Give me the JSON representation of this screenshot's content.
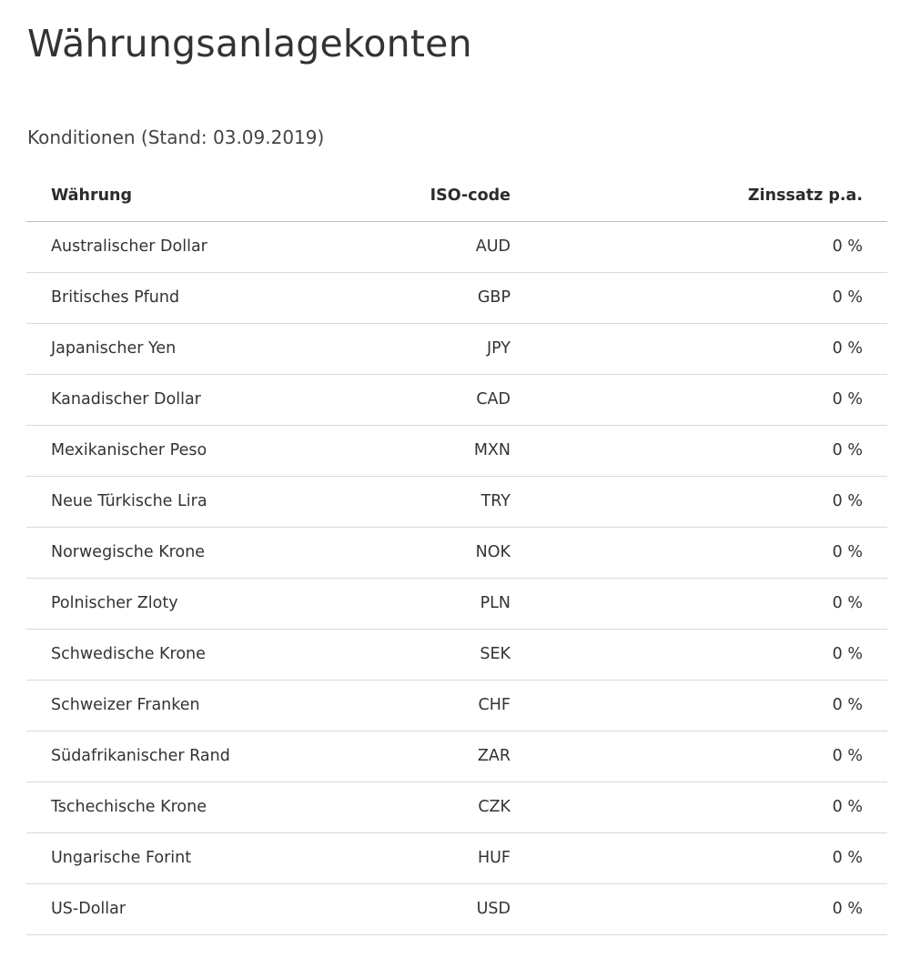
{
  "page": {
    "title": "Währungsanlagekonten",
    "subtitle": "Konditionen (Stand: 03.09.2019)"
  },
  "table": {
    "headers": {
      "currency": "Währung",
      "iso": "ISO-code",
      "rate": "Zinssatz p.a."
    },
    "rows": [
      {
        "currency": "Australischer Dollar",
        "iso": "AUD",
        "rate": "0 %"
      },
      {
        "currency": "Britisches Pfund",
        "iso": "GBP",
        "rate": "0 %"
      },
      {
        "currency": "Japanischer Yen",
        "iso": "JPY",
        "rate": "0 %"
      },
      {
        "currency": "Kanadischer Dollar",
        "iso": "CAD",
        "rate": "0 %"
      },
      {
        "currency": "Mexikanischer Peso",
        "iso": "MXN",
        "rate": "0 %"
      },
      {
        "currency": "Neue Türkische Lira",
        "iso": "TRY",
        "rate": "0 %"
      },
      {
        "currency": "Norwegische Krone",
        "iso": "NOK",
        "rate": "0 %"
      },
      {
        "currency": "Polnischer Zloty",
        "iso": "PLN",
        "rate": "0 %"
      },
      {
        "currency": "Schwedische Krone",
        "iso": "SEK",
        "rate": "0 %"
      },
      {
        "currency": "Schweizer Franken",
        "iso": "CHF",
        "rate": "0 %"
      },
      {
        "currency": "Südafrikanischer Rand",
        "iso": "ZAR",
        "rate": "0 %"
      },
      {
        "currency": "Tschechische Krone",
        "iso": "CZK",
        "rate": "0 %"
      },
      {
        "currency": "Ungarische Forint",
        "iso": "HUF",
        "rate": "0 %"
      },
      {
        "currency": "US-Dollar",
        "iso": "USD",
        "rate": "0 %"
      }
    ]
  }
}
